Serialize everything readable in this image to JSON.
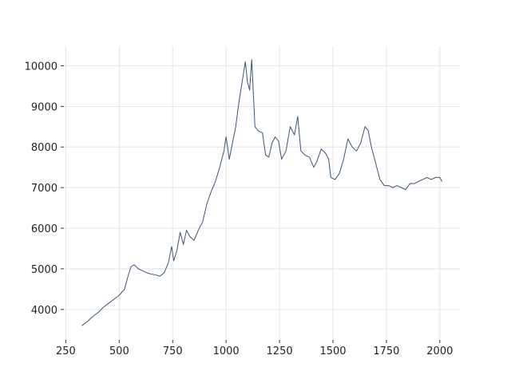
{
  "chart_data": {
    "type": "line",
    "x": [
      325,
      350,
      375,
      400,
      425,
      450,
      475,
      500,
      525,
      540,
      555,
      570,
      590,
      610,
      630,
      650,
      670,
      690,
      710,
      730,
      745,
      755,
      770,
      785,
      800,
      815,
      830,
      850,
      870,
      890,
      910,
      930,
      950,
      970,
      990,
      1000,
      1015,
      1030,
      1045,
      1060,
      1075,
      1090,
      1100,
      1110,
      1120,
      1135,
      1150,
      1170,
      1185,
      1200,
      1215,
      1230,
      1245,
      1260,
      1280,
      1300,
      1320,
      1335,
      1350,
      1370,
      1390,
      1410,
      1425,
      1445,
      1465,
      1480,
      1490,
      1510,
      1530,
      1550,
      1570,
      1590,
      1610,
      1630,
      1650,
      1665,
      1680,
      1700,
      1720,
      1740,
      1760,
      1780,
      1800,
      1820,
      1840,
      1860,
      1880,
      1900,
      1920,
      1940,
      1960,
      1980,
      2000,
      2010
    ],
    "series": [
      {
        "color": "#3b5475",
        "values": [
          3600,
          3700,
          3820,
          3920,
          4050,
          4150,
          4250,
          4350,
          4500,
          4800,
          5050,
          5100,
          5000,
          4950,
          4900,
          4870,
          4850,
          4820,
          4900,
          5150,
          5550,
          5200,
          5450,
          5900,
          5600,
          5950,
          5800,
          5700,
          5950,
          6150,
          6600,
          6900,
          7150,
          7500,
          7900,
          8250,
          7700,
          8100,
          8500,
          9100,
          9600,
          10100,
          9600,
          9400,
          10150,
          8500,
          8400,
          8350,
          7800,
          7750,
          8100,
          8250,
          8150,
          7700,
          7900,
          8500,
          8300,
          8750,
          7900,
          7800,
          7750,
          7500,
          7650,
          7950,
          7850,
          7700,
          7250,
          7200,
          7350,
          7700,
          8200,
          8000,
          7900,
          8100,
          8500,
          8400,
          8000,
          7600,
          7200,
          7050,
          7050,
          7000,
          7050,
          7000,
          6950,
          7100,
          7100,
          7150,
          7200,
          7250,
          7200,
          7250,
          7250,
          7150
        ]
      }
    ],
    "xlim": [
      241,
      2094
    ],
    "ylim": [
      3250,
      10480
    ],
    "xticks": [
      250,
      500,
      750,
      1000,
      1250,
      1500,
      1750,
      2000
    ],
    "yticks": [
      4000,
      5000,
      6000,
      7000,
      8000,
      9000,
      10000
    ],
    "grid": true
  }
}
